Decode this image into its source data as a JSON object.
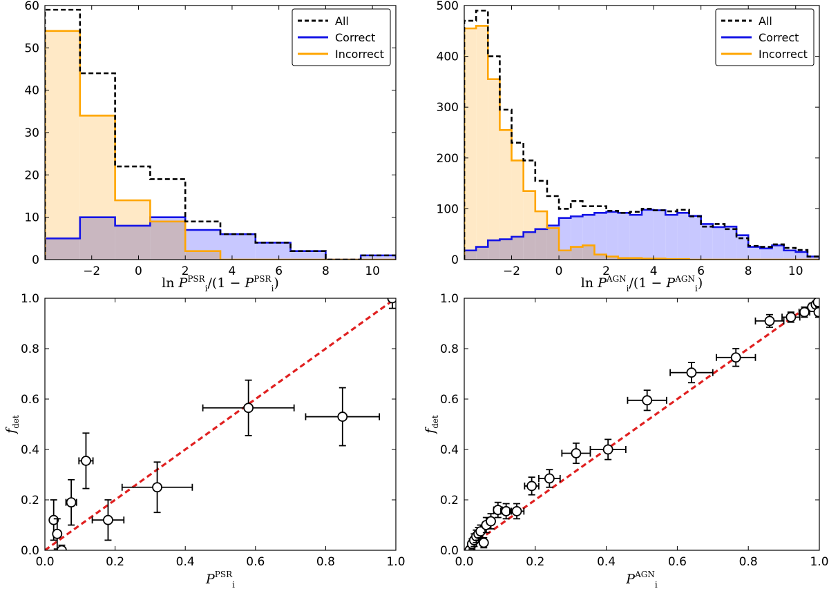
{
  "colors": {
    "all": "#000000",
    "correct": "#1414e6",
    "incorrect": "#ffa500",
    "correct_fill": "#c8c8ff",
    "incorrect_fill": "#ffe9c6",
    "overlap_fill": "#c9b7c0",
    "diagonal": "#e02020"
  },
  "chart_data": [
    {
      "type": "histogram",
      "panel": "top-left",
      "xlabel": "ln P_i^PSR / (1 − P_i^PSR)",
      "xlabel_parts": {
        "pre": "ln ",
        "P": "P",
        "sub": "i",
        "sup": "PSR",
        "mid": "/(1 − ",
        "P2": "P",
        "sub2": "i",
        "sup2": "PSR",
        "post": ")"
      },
      "xlim": [
        -4,
        11
      ],
      "ylim": [
        0,
        60
      ],
      "xticks": [
        -2,
        0,
        2,
        4,
        6,
        8,
        10
      ],
      "yticks": [
        0,
        10,
        20,
        30,
        40,
        50,
        60
      ],
      "legend": {
        "position": "top-right",
        "entries": [
          "All",
          "Correct",
          "Incorrect"
        ]
      },
      "bin_edges": [
        -4,
        -2.5,
        -1,
        0.5,
        2,
        3.5,
        5,
        6.5,
        8,
        9.5,
        11
      ],
      "series": [
        {
          "name": "All",
          "values": [
            59,
            44,
            22,
            19,
            9,
            6,
            4,
            2,
            0,
            1
          ]
        },
        {
          "name": "Correct",
          "values": [
            5,
            10,
            8,
            10,
            7,
            6,
            4,
            2,
            0,
            1
          ]
        },
        {
          "name": "Incorrect",
          "values": [
            54,
            34,
            14,
            9,
            2,
            0,
            0,
            0,
            0,
            0
          ]
        }
      ]
    },
    {
      "type": "histogram",
      "panel": "top-right",
      "xlabel": "ln P_i^AGN / (1 − P_i^AGN)",
      "xlabel_parts": {
        "pre": "ln ",
        "P": "P",
        "sub": "i",
        "sup": "AGN",
        "mid": "/(1 − ",
        "P2": "P",
        "sub2": "i",
        "sup2": "AGN",
        "post": ")"
      },
      "xlim": [
        -4,
        11
      ],
      "ylim": [
        0,
        500
      ],
      "xticks": [
        -2,
        0,
        2,
        4,
        6,
        8,
        10
      ],
      "yticks": [
        0,
        100,
        200,
        300,
        400,
        500
      ],
      "legend": {
        "position": "top-right",
        "entries": [
          "All",
          "Correct",
          "Incorrect"
        ]
      },
      "bin_edges": [
        -4,
        -3.5,
        -3,
        -2.5,
        -2,
        -1.5,
        -1,
        -0.5,
        0,
        0.5,
        1,
        1.5,
        2,
        2.5,
        3,
        3.5,
        4,
        4.5,
        5,
        5.5,
        6,
        6.5,
        7,
        7.5,
        8,
        8.5,
        9,
        9.5,
        10,
        10.5,
        11
      ],
      "series": [
        {
          "name": "All",
          "values": [
            470,
            490,
            400,
            295,
            230,
            195,
            155,
            125,
            100,
            115,
            105,
            105,
            96,
            92,
            94,
            100,
            97,
            95,
            98,
            85,
            65,
            70,
            60,
            42,
            27,
            25,
            30,
            23,
            19,
            6
          ]
        },
        {
          "name": "Correct",
          "values": [
            18,
            25,
            38,
            40,
            45,
            54,
            60,
            67,
            82,
            85,
            88,
            92,
            94,
            92,
            88,
            98,
            97,
            88,
            92,
            86,
            70,
            64,
            65,
            48,
            25,
            22,
            28,
            18,
            15,
            6
          ]
        },
        {
          "name": "Incorrect",
          "values": [
            455,
            460,
            355,
            255,
            195,
            135,
            95,
            62,
            18,
            25,
            28,
            10,
            6,
            3,
            3,
            2,
            2,
            1,
            1,
            0,
            0,
            0,
            0,
            0,
            0,
            0,
            0,
            0,
            0,
            0
          ]
        }
      ]
    },
    {
      "type": "scatter",
      "panel": "bottom-left",
      "xlabel": "P_i^PSR",
      "xlabel_parts": {
        "P": "P",
        "sub": "i",
        "sup": "PSR"
      },
      "ylabel": "f_det",
      "ylabel_parts": {
        "f": "f",
        "sub": "det"
      },
      "xlim": [
        0,
        1
      ],
      "ylim": [
        0,
        1
      ],
      "xticks": [
        0.0,
        0.2,
        0.4,
        0.6,
        0.8,
        1.0
      ],
      "yticks": [
        0.0,
        0.2,
        0.4,
        0.6,
        0.8,
        1.0
      ],
      "tick_labels": [
        "0.0",
        "0.2",
        "0.4",
        "0.6",
        "0.8",
        "1.0"
      ],
      "diagonal": true,
      "points": [
        {
          "x": 0.025,
          "y": 0.12,
          "xerr": 0.008,
          "yerr": 0.08
        },
        {
          "x": 0.035,
          "y": 0.065,
          "xerr": 0.008,
          "yerr": 0.06
        },
        {
          "x": 0.048,
          "y": 0.0,
          "xerr": 0.006,
          "yerr": 0.02
        },
        {
          "x": 0.075,
          "y": 0.19,
          "xerr": 0.015,
          "yerr": 0.09
        },
        {
          "x": 0.117,
          "y": 0.355,
          "xerr": 0.02,
          "yerr": 0.11
        },
        {
          "x": 0.18,
          "y": 0.12,
          "xerr": 0.045,
          "yerr": 0.08
        },
        {
          "x": 0.32,
          "y": 0.25,
          "xerr": 0.1,
          "yerr": 0.1
        },
        {
          "x": 0.58,
          "y": 0.565,
          "xerr": 0.13,
          "yerr": 0.11
        },
        {
          "x": 0.848,
          "y": 0.53,
          "xerr": 0.105,
          "yerr": 0.115
        },
        {
          "x": 0.99,
          "y": 1.0,
          "xerr": 0.005,
          "yerr": 0.04
        }
      ]
    },
    {
      "type": "scatter",
      "panel": "bottom-right",
      "xlabel": "P_i^AGN",
      "xlabel_parts": {
        "P": "P",
        "sub": "i",
        "sup": "AGN"
      },
      "ylabel": "f_det",
      "ylabel_parts": {
        "f": "f",
        "sub": "det"
      },
      "xlim": [
        0,
        1
      ],
      "ylim": [
        0,
        1
      ],
      "xticks": [
        0.0,
        0.2,
        0.4,
        0.6,
        0.8,
        1.0
      ],
      "yticks": [
        0.0,
        0.2,
        0.4,
        0.6,
        0.8,
        1.0
      ],
      "tick_labels": [
        "0.0",
        "0.2",
        "0.4",
        "0.6",
        "0.8",
        "1.0"
      ],
      "diagonal": true,
      "points": [
        {
          "x": 0.015,
          "y": 0.0,
          "xerr": 0.005,
          "yerr": 0.015
        },
        {
          "x": 0.022,
          "y": 0.025,
          "xerr": 0.006,
          "yerr": 0.02
        },
        {
          "x": 0.028,
          "y": 0.04,
          "xerr": 0.006,
          "yerr": 0.025
        },
        {
          "x": 0.034,
          "y": 0.055,
          "xerr": 0.007,
          "yerr": 0.025
        },
        {
          "x": 0.04,
          "y": 0.065,
          "xerr": 0.007,
          "yerr": 0.025
        },
        {
          "x": 0.046,
          "y": 0.075,
          "xerr": 0.008,
          "yerr": 0.025
        },
        {
          "x": 0.055,
          "y": 0.03,
          "xerr": 0.008,
          "yerr": 0.02
        },
        {
          "x": 0.062,
          "y": 0.1,
          "xerr": 0.01,
          "yerr": 0.03
        },
        {
          "x": 0.075,
          "y": 0.115,
          "xerr": 0.01,
          "yerr": 0.03
        },
        {
          "x": 0.095,
          "y": 0.16,
          "xerr": 0.012,
          "yerr": 0.03
        },
        {
          "x": 0.118,
          "y": 0.155,
          "xerr": 0.015,
          "yerr": 0.03
        },
        {
          "x": 0.148,
          "y": 0.155,
          "xerr": 0.02,
          "yerr": 0.03
        },
        {
          "x": 0.19,
          "y": 0.255,
          "xerr": 0.02,
          "yerr": 0.035
        },
        {
          "x": 0.24,
          "y": 0.285,
          "xerr": 0.03,
          "yerr": 0.035
        },
        {
          "x": 0.315,
          "y": 0.385,
          "xerr": 0.04,
          "yerr": 0.04
        },
        {
          "x": 0.405,
          "y": 0.4,
          "xerr": 0.05,
          "yerr": 0.04
        },
        {
          "x": 0.515,
          "y": 0.595,
          "xerr": 0.055,
          "yerr": 0.04
        },
        {
          "x": 0.64,
          "y": 0.705,
          "xerr": 0.06,
          "yerr": 0.04
        },
        {
          "x": 0.765,
          "y": 0.765,
          "xerr": 0.055,
          "yerr": 0.035
        },
        {
          "x": 0.86,
          "y": 0.91,
          "xerr": 0.04,
          "yerr": 0.025
        },
        {
          "x": 0.92,
          "y": 0.925,
          "xerr": 0.025,
          "yerr": 0.02
        },
        {
          "x": 0.958,
          "y": 0.945,
          "xerr": 0.015,
          "yerr": 0.02
        },
        {
          "x": 0.98,
          "y": 0.965,
          "xerr": 0.008,
          "yerr": 0.015
        },
        {
          "x": 0.99,
          "y": 0.975,
          "xerr": 0.005,
          "yerr": 0.012
        },
        {
          "x": 0.996,
          "y": 0.985,
          "xerr": 0.003,
          "yerr": 0.01
        },
        {
          "x": 0.998,
          "y": 0.945,
          "xerr": 0.002,
          "yerr": 0.02
        }
      ]
    }
  ]
}
